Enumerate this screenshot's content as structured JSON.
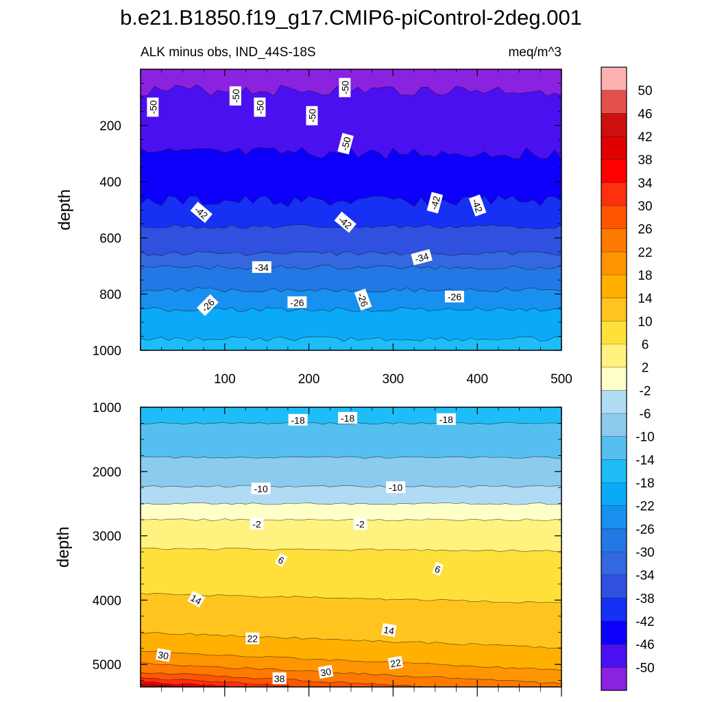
{
  "chart_data": {
    "type": "contour",
    "title": "b.e21.B1850.f19_g17.CMIP6-piControl-2deg.001",
    "left_string": "ALK minus obs, IND_44S-18S",
    "right_string": "meq/m^3",
    "ylabel": "depth",
    "xlim": [
      0,
      500
    ],
    "x_ticks": [
      100,
      200,
      300,
      400,
      500
    ],
    "colorbar": {
      "labels": [
        "50",
        "46",
        "42",
        "38",
        "34",
        "30",
        "26",
        "22",
        "18",
        "14",
        "10",
        "6",
        "2",
        "-2",
        "-6",
        "-10",
        "-14",
        "-18",
        "-22",
        "-26",
        "-30",
        "-34",
        "-38",
        "-42",
        "-46",
        "-50"
      ],
      "colors": [
        "#fdb2b2",
        "#e5504d",
        "#cc1010",
        "#e00000",
        "#ff0000",
        "#ff3010",
        "#ff5500",
        "#ff7a00",
        "#ff9500",
        "#ffb000",
        "#ffc51e",
        "#ffe03a",
        "#fff27e",
        "#ffffc8",
        "#b0dcf3",
        "#8ccbed",
        "#55c0f0",
        "#1ebdf8",
        "#0aaaf8",
        "#1890f0",
        "#2278e4",
        "#3468e0",
        "#3050e0",
        "#1630f4",
        "#0c00fa",
        "#4a10f0",
        "#8a22e0"
      ]
    },
    "panels": [
      {
        "name": "upper",
        "ylim": [
          0,
          1000
        ],
        "y_ticks": [
          200,
          400,
          600,
          800,
          1000
        ],
        "bands": [
          {
            "level": -54,
            "ymin": 0,
            "ymax": 75
          },
          {
            "level": -50,
            "ymin": 75,
            "ymax": 300
          },
          {
            "level": -46,
            "ymin": 300,
            "ymax": 470
          },
          {
            "level": -42,
            "ymin": 470,
            "ymax": 560
          },
          {
            "level": -38,
            "ymin": 560,
            "ymax": 655
          },
          {
            "level": -34,
            "ymin": 655,
            "ymax": 705
          },
          {
            "level": -30,
            "ymin": 705,
            "ymax": 785
          },
          {
            "level": -26,
            "ymin": 785,
            "ymax": 855
          },
          {
            "level": -22,
            "ymin": 855,
            "ymax": 960
          },
          {
            "level": -18,
            "ymin": 960,
            "ymax": 1000
          }
        ],
        "contour_labels": [
          {
            "text": "-50",
            "x": 15,
            "depth": 135,
            "angle": -90
          },
          {
            "text": "-50",
            "x": 113,
            "depth": 95,
            "angle": -90
          },
          {
            "text": "-50",
            "x": 142,
            "depth": 135,
            "angle": -90
          },
          {
            "text": "-50",
            "x": 204,
            "depth": 165,
            "angle": -90
          },
          {
            "text": "-50",
            "x": 244,
            "depth": 265,
            "angle": -75
          },
          {
            "text": "-50",
            "x": 243,
            "depth": 65,
            "angle": -90
          },
          {
            "text": "-42",
            "x": 72,
            "depth": 510,
            "angle": 40
          },
          {
            "text": "-42",
            "x": 243,
            "depth": 545,
            "angle": 40
          },
          {
            "text": "-42",
            "x": 350,
            "depth": 475,
            "angle": -75
          },
          {
            "text": "-42",
            "x": 400,
            "depth": 485,
            "angle": 70
          },
          {
            "text": "-34",
            "x": 144,
            "depth": 705,
            "angle": 0
          },
          {
            "text": "-34",
            "x": 334,
            "depth": 670,
            "angle": -15
          },
          {
            "text": "-26",
            "x": 80,
            "depth": 840,
            "angle": -45
          },
          {
            "text": "-26",
            "x": 186,
            "depth": 830,
            "angle": 0
          },
          {
            "text": "-26",
            "x": 264,
            "depth": 820,
            "angle": 70
          },
          {
            "text": "-26",
            "x": 373,
            "depth": 810,
            "angle": 0
          }
        ]
      },
      {
        "name": "lower",
        "ylim": [
          1000,
          5350
        ],
        "y_ticks": [
          1000,
          2000,
          3000,
          4000,
          5000
        ],
        "bands": [
          {
            "level": -18,
            "ymin": 1000,
            "ymax": 1250
          },
          {
            "level": -14,
            "ymin": 1250,
            "ymax": 1780
          },
          {
            "level": -10,
            "ymin": 1780,
            "ymax": 2230
          },
          {
            "level": -6,
            "ymin": 2230,
            "ymax": 2500
          },
          {
            "level": -2,
            "ymin": 2500,
            "ymax": 2750
          },
          {
            "level": 2,
            "ymin": 2750,
            "ymax": 3200
          },
          {
            "level": 6,
            "ymin": 3200,
            "ymax": 3900
          },
          {
            "level": 10,
            "ymin": 3900,
            "ymax": 4500
          },
          {
            "level": 14,
            "ymin": 4500,
            "ymax": 4800
          },
          {
            "level": 18,
            "ymin": 4800,
            "ymax": 4980
          },
          {
            "level": 22,
            "ymin": 4980,
            "ymax": 5120
          },
          {
            "level": 26,
            "ymin": 5120,
            "ymax": 5210
          },
          {
            "level": 30,
            "ymin": 5210,
            "ymax": 5270
          },
          {
            "level": 34,
            "ymin": 5270,
            "ymax": 5310
          },
          {
            "level": 38,
            "ymin": 5310,
            "ymax": 5330
          },
          {
            "level": 42,
            "ymin": 5330,
            "ymax": 5350
          }
        ],
        "contour_labels": [
          {
            "text": "-18",
            "x": 187,
            "depth": 1200,
            "angle": 0
          },
          {
            "text": "-18",
            "x": 246,
            "depth": 1170,
            "angle": 0
          },
          {
            "text": "-18",
            "x": 363,
            "depth": 1190,
            "angle": 0
          },
          {
            "text": "-10",
            "x": 143,
            "depth": 2270,
            "angle": 0
          },
          {
            "text": "-10",
            "x": 303,
            "depth": 2250,
            "angle": 0
          },
          {
            "text": "-2",
            "x": 138,
            "depth": 2820,
            "angle": 0
          },
          {
            "text": "-2",
            "x": 261,
            "depth": 2820,
            "angle": 0
          },
          {
            "text": "6",
            "x": 167,
            "depth": 3380,
            "angle": 30
          },
          {
            "text": "6",
            "x": 353,
            "depth": 3520,
            "angle": 20
          },
          {
            "text": "14",
            "x": 66,
            "depth": 3990,
            "angle": 30
          },
          {
            "text": "14",
            "x": 295,
            "depth": 4470,
            "angle": 10
          },
          {
            "text": "22",
            "x": 133,
            "depth": 4600,
            "angle": 0
          },
          {
            "text": "22",
            "x": 303,
            "depth": 4980,
            "angle": -10
          },
          {
            "text": "30",
            "x": 27,
            "depth": 4860,
            "angle": 10
          },
          {
            "text": "30",
            "x": 220,
            "depth": 5120,
            "angle": -10
          },
          {
            "text": "38",
            "x": 165,
            "depth": 5220,
            "angle": 0
          }
        ]
      }
    ]
  }
}
